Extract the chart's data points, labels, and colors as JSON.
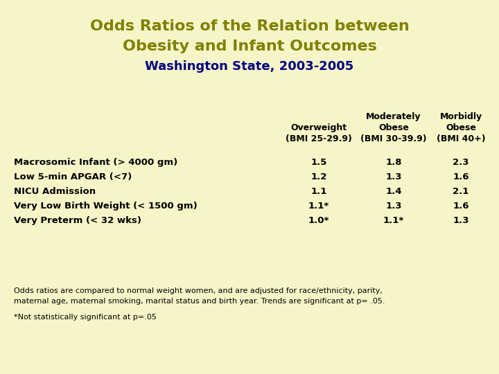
{
  "bg_color": "#f5f5c8",
  "title_line1": "Odds Ratios of the Relation between",
  "title_line2": "Obesity and Infant Outcomes",
  "subtitle": "Washington State, 2003-2005",
  "title_color": "#808000",
  "subtitle_color": "#000080",
  "col_headers_col1": [
    "Overweight",
    "(BMI 25-29.9)"
  ],
  "col_headers_col2": [
    "Moderately",
    "Obese",
    "(BMI 30-39.9)"
  ],
  "col_headers_col3": [
    "Morbidly",
    "Obese",
    "(BMI 40+)"
  ],
  "row_labels": [
    "Macrosomic Infant (> 4000 gm)",
    "Low 5-min APGAR (<7)",
    "NICU Admission",
    "Very Low Birth Weight (< 1500 gm)",
    "Very Preterm (< 32 wks)"
  ],
  "data": [
    [
      "1.5",
      "1.8",
      "2.3"
    ],
    [
      "1.2",
      "1.3",
      "1.6"
    ],
    [
      "1.1",
      "1.4",
      "2.1"
    ],
    [
      "1.1*",
      "1.3",
      "1.6"
    ],
    [
      "1.0*",
      "1.1*",
      "1.3"
    ]
  ],
  "footnote1": "Odds ratios are compared to normal weight women, and are adjusted for race/ethnicity, parity,",
  "footnote2": "maternal age, maternal smoking, marital status and birth year. Trends are significant at p= .05.",
  "footnote3": "*Not statistically significant at p=.05"
}
